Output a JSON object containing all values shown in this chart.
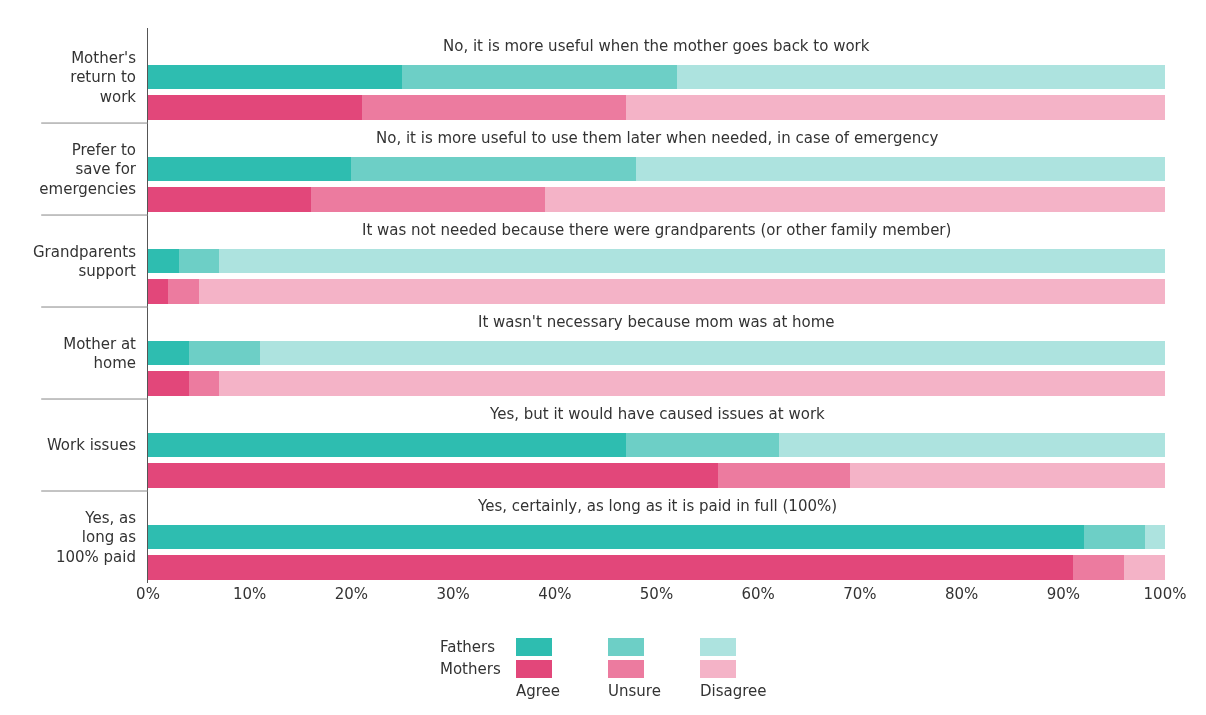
{
  "chart_data": {
    "type": "bar",
    "orientation": "horizontal",
    "stacked": true,
    "legend": "bottom",
    "grid": false,
    "categories": [
      null,
      "Mother's return to work",
      null,
      null,
      "Prefer to save for emergencies",
      null,
      null,
      "Grandparents support",
      null,
      null,
      "Mother at home",
      null,
      null,
      "Work issues",
      null,
      null,
      "Yes, as long as 100% paid",
      null
    ],
    "series": [
      {
        "name": "Agree",
        "colors": [
          null,
          "#2ebdb0",
          "#e2477a",
          null,
          "#2ebdb0",
          "#e2477a",
          null,
          "#2ebdb0",
          "#e2477a",
          null,
          "#2ebdb0",
          "#e2477a",
          null,
          "#2ebdb0",
          "#e2477a",
          null,
          "#2ebdb0",
          "#e2477a"
        ],
        "values": [
          null,
          25,
          21,
          null,
          20,
          16,
          null,
          3,
          2,
          null,
          4,
          4,
          null,
          47,
          56,
          null,
          92,
          91
        ]
      },
      {
        "name": "Unsure",
        "colors": [
          null,
          "#6dcfc6",
          "#ec7b9f",
          null,
          "#6dcfc6",
          "#ec7b9f",
          null,
          "#6dcfc6",
          "#ec7b9f",
          null,
          "#6dcfc6",
          "#ec7b9f",
          null,
          "#6dcfc6",
          "#ec7b9f",
          null,
          "#6dcfc6",
          "#ec7b9f"
        ],
        "values": [
          null,
          27,
          26,
          null,
          28,
          23,
          null,
          4,
          3,
          null,
          7,
          3,
          null,
          15,
          13,
          null,
          6,
          5
        ]
      },
      {
        "name": "Disagree",
        "colors": [
          null,
          "#ade3df",
          "#f4b3c7",
          null,
          "#ade3df",
          "#f4b3c7",
          null,
          "#ade3df",
          "#f4b3c7",
          null,
          "#ade3df",
          "#f4b3c7",
          null,
          "#ade3df",
          "#f4b3c7",
          null,
          "#ade3df",
          "#f4b3c7"
        ],
        "values": [
          null,
          48,
          53,
          null,
          52,
          61,
          null,
          93,
          95,
          null,
          89,
          93,
          null,
          38,
          31,
          null,
          2,
          4
        ]
      }
    ],
    "xlim": [
      0,
      100
    ],
    "xticks": [
      {
        "value": 0,
        "label": "0%"
      },
      {
        "value": 10,
        "label": "10%"
      },
      {
        "value": 20,
        "label": "20%"
      },
      {
        "value": 30,
        "label": "30%"
      },
      {
        "value": 40,
        "label": "40%"
      },
      {
        "value": 50,
        "label": "50%"
      },
      {
        "value": 60,
        "label": "60%"
      },
      {
        "value": 70,
        "label": "70%"
      },
      {
        "value": 80,
        "label": "80%"
      },
      {
        "value": 90,
        "label": "90%"
      },
      {
        "value": 100,
        "label": "100%"
      }
    ],
    "annotations": [
      "No, it is more useful when the mother goes back to work",
      "No, it is more useful to use them later when needed, in case of emergency",
      "It was not needed because there were grandparents (or other family member)",
      "It wasn't necessary because mom was at home",
      "Yes, but it would have caused issues at work",
      "Yes, certainly, as long as it is paid in full (100%)",
      "Fathers",
      "Mothers"
    ]
  }
}
